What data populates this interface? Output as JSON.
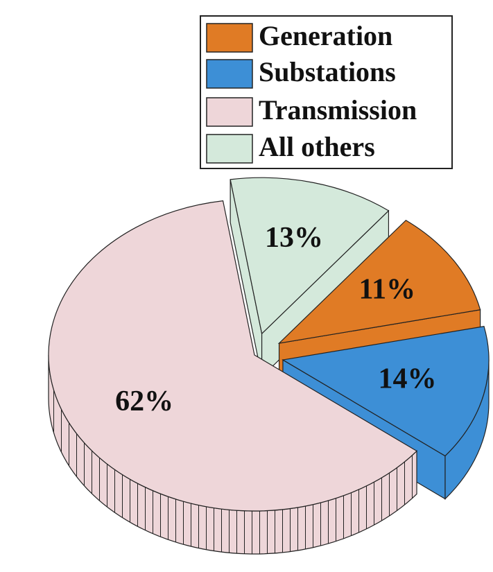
{
  "chart_data": {
    "type": "pie",
    "categories": [
      "Generation",
      "Substations",
      "Transmission",
      "All others"
    ],
    "values": [
      11,
      14,
      62,
      13
    ],
    "value_labels": [
      "11%",
      "14%",
      "62%",
      "13%"
    ],
    "colors": [
      "#e07b25",
      "#3d8fd6",
      "#eed6d9",
      "#d4e9db"
    ],
    "legend": "upper right"
  }
}
